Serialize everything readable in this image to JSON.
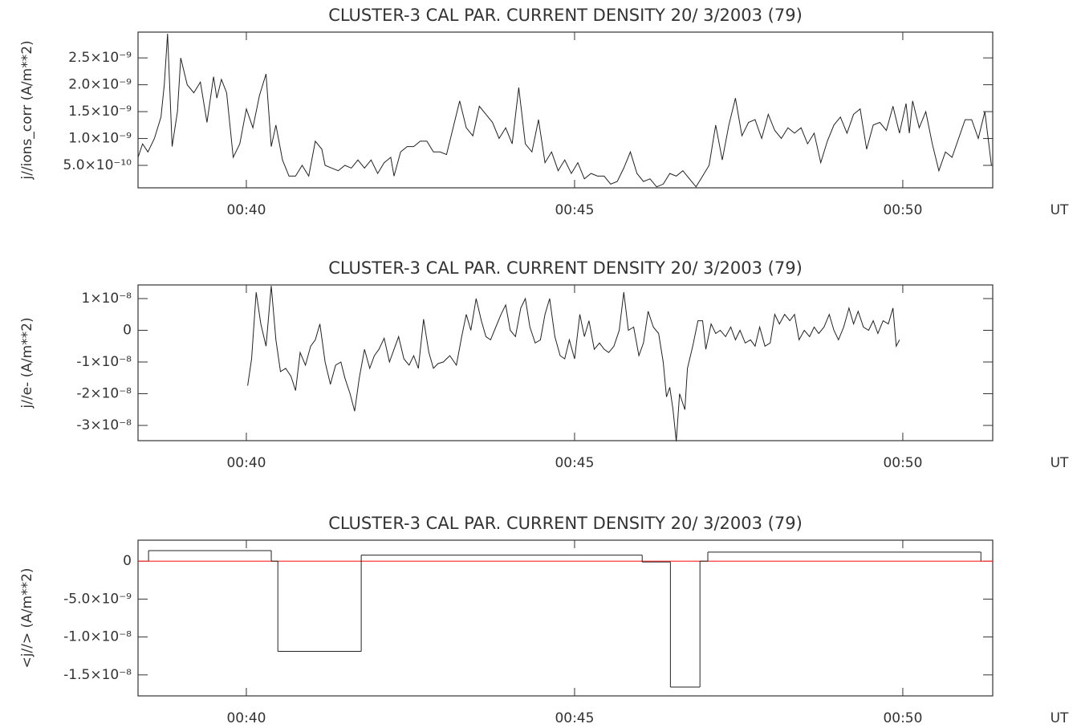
{
  "chart_data": [
    {
      "type": "line",
      "title": "CLUSTER-3 CAL PAR. CURRENT DENSITY 20/ 3/2003 (79)",
      "y_label": "j//ions_corr (A/m**2)",
      "x_label": "UT",
      "xlim": [
        38.35,
        51.37
      ],
      "xticks": [
        {
          "value": 40,
          "label": "00:40"
        },
        {
          "value": 45,
          "label": "00:45"
        },
        {
          "value": 50,
          "label": "00:50"
        }
      ],
      "ylim": [
        8.2e-11,
        2.98e-09
      ],
      "yticks": [
        {
          "value": 2.5e-09,
          "label": "2.5×10⁻⁹"
        },
        {
          "value": 2e-09,
          "label": "2.0×10⁻⁹"
        },
        {
          "value": 1.5e-09,
          "label": "1.5×10⁻⁹"
        },
        {
          "value": 1e-09,
          "label": "1.0×10⁻⁹"
        },
        {
          "value": 5e-10,
          "label": "5.0×10⁻¹⁰"
        }
      ],
      "series": [
        {
          "color": "#222222",
          "x": [
            38.35,
            38.42,
            38.5,
            38.6,
            38.7,
            38.75,
            38.8,
            38.87,
            38.95,
            39.0,
            39.1,
            39.2,
            39.3,
            39.4,
            39.5,
            39.55,
            39.62,
            39.7,
            39.8,
            39.9,
            40.0,
            40.1,
            40.2,
            40.3,
            40.38,
            40.45,
            40.55,
            40.65,
            40.75,
            40.85,
            40.95,
            41.05,
            41.15,
            41.2,
            41.3,
            41.4,
            41.5,
            41.6,
            41.7,
            41.8,
            41.9,
            42.0,
            42.1,
            42.2,
            42.25,
            42.35,
            42.45,
            42.55,
            42.65,
            42.75,
            42.85,
            42.95,
            43.05,
            43.15,
            43.25,
            43.35,
            43.45,
            43.55,
            43.65,
            43.75,
            43.85,
            43.95,
            44.05,
            44.15,
            44.25,
            44.35,
            44.45,
            44.55,
            44.65,
            44.75,
            44.85,
            44.95,
            45.05,
            45.15,
            45.25,
            45.35,
            45.45,
            45.55,
            45.65,
            45.75,
            45.85,
            45.95,
            46.05,
            46.15,
            46.25,
            46.35,
            46.45,
            46.55,
            46.65,
            46.75,
            46.85,
            46.95,
            47.05,
            47.15,
            47.25,
            47.35,
            47.45,
            47.55,
            47.65,
            47.75,
            47.85,
            47.95,
            48.05,
            48.15,
            48.25,
            48.35,
            48.45,
            48.55,
            48.65,
            48.75,
            48.85,
            48.95,
            49.05,
            49.15,
            49.25,
            49.35,
            49.45,
            49.55,
            49.65,
            49.75,
            49.85,
            49.95,
            50.05,
            50.1,
            50.15,
            50.25,
            50.35,
            50.45,
            50.55,
            50.65,
            50.75,
            50.85,
            50.95,
            51.05,
            51.15,
            51.25,
            51.35
          ],
          "values": [
            6.5e-10,
            9e-10,
            7.5e-10,
            1e-09,
            1.4e-09,
            2e-09,
            2.95e-09,
            8.5e-10,
            1.5e-09,
            2.5e-09,
            2e-09,
            1.85e-09,
            2.05e-09,
            1.3e-09,
            2.15e-09,
            1.75e-09,
            2.1e-09,
            1.85e-09,
            6.5e-10,
            9e-10,
            1.55e-09,
            1.2e-09,
            1.8e-09,
            2.2e-09,
            8.5e-10,
            1.25e-09,
            6e-10,
            3e-10,
            3e-10,
            5e-10,
            3e-10,
            9.5e-10,
            8e-10,
            5e-10,
            4.5e-10,
            4e-10,
            5e-10,
            4.5e-10,
            6e-10,
            4.5e-10,
            6e-10,
            3.5e-10,
            5.5e-10,
            6.5e-10,
            3e-10,
            7.5e-10,
            8.5e-10,
            8.5e-10,
            9.5e-10,
            9.5e-10,
            7.5e-10,
            7.5e-10,
            7e-10,
            1.2e-09,
            1.7e-09,
            1.2e-09,
            1.05e-09,
            1.6e-09,
            1.45e-09,
            1.3e-09,
            1e-09,
            1.2e-09,
            9e-10,
            1.95e-09,
            9e-10,
            7.5e-10,
            1.35e-09,
            5.5e-10,
            7.5e-10,
            4e-10,
            6e-10,
            3.5e-10,
            5.5e-10,
            2.5e-10,
            3.5e-10,
            3e-10,
            3e-10,
            1.5e-10,
            2e-10,
            4.5e-10,
            7.5e-10,
            3.5e-10,
            2e-10,
            2.5e-10,
            1e-10,
            1.5e-10,
            3.5e-10,
            3e-10,
            4e-10,
            2.5e-10,
            1e-10,
            3e-10,
            5e-10,
            1.25e-09,
            6e-10,
            1.25e-09,
            1.75e-09,
            1.05e-09,
            1.3e-09,
            1.35e-09,
            1e-09,
            1.45e-09,
            1.15e-09,
            1e-09,
            1.2e-09,
            1.1e-09,
            1.2e-09,
            9e-10,
            1.1e-09,
            5.5e-10,
            9.5e-10,
            1.25e-09,
            1.4e-09,
            1.1e-09,
            1.45e-09,
            1.55e-09,
            8e-10,
            1.25e-09,
            1.3e-09,
            1.15e-09,
            1.6e-09,
            1.1e-09,
            1.65e-09,
            1.1e-09,
            1.7e-09,
            1.2e-09,
            1.5e-09,
            9e-10,
            4e-10,
            7.5e-10,
            6.5e-10,
            1e-09,
            1.35e-09,
            1.35e-09,
            1e-09,
            1.5e-09,
            5e-10
          ]
        }
      ]
    },
    {
      "type": "line",
      "title": "CLUSTER-3 CAL PAR. CURRENT DENSITY 20/ 3/2003 (79)",
      "y_label": "j//e- (A/m**2)",
      "x_label": "UT",
      "xlim": [
        38.35,
        51.37
      ],
      "xticks": [
        {
          "value": 40,
          "label": "00:40"
        },
        {
          "value": 45,
          "label": "00:45"
        },
        {
          "value": 50,
          "label": "00:50"
        }
      ],
      "ylim": [
        -3.48e-08,
        1.43e-08
      ],
      "yticks": [
        {
          "value": 1e-08,
          "label": "1×10⁻⁸"
        },
        0,
        {
          "value": -1e-08,
          "label": "-1×10⁻⁸"
        },
        {
          "value": -2e-08,
          "label": "-2×10⁻⁸"
        },
        {
          "value": -3e-08,
          "label": "-3×10⁻⁸"
        }
      ],
      "series": [
        {
          "color": "#222222",
          "x": [
            40.02,
            40.08,
            40.15,
            40.22,
            40.3,
            40.38,
            40.45,
            40.52,
            40.6,
            40.68,
            40.75,
            40.82,
            40.9,
            40.98,
            41.05,
            41.12,
            41.2,
            41.28,
            41.36,
            41.44,
            41.5,
            41.58,
            41.65,
            41.72,
            41.8,
            41.88,
            41.95,
            42.02,
            42.1,
            42.18,
            42.25,
            42.32,
            42.4,
            42.48,
            42.55,
            42.62,
            42.7,
            42.78,
            42.85,
            42.92,
            43.0,
            43.1,
            43.2,
            43.28,
            43.35,
            43.42,
            43.5,
            43.58,
            43.65,
            43.72,
            43.8,
            43.88,
            43.95,
            44.02,
            44.1,
            44.18,
            44.25,
            44.32,
            44.4,
            44.48,
            44.55,
            44.62,
            44.7,
            44.78,
            44.85,
            44.92,
            45.0,
            45.08,
            45.15,
            45.22,
            45.3,
            45.38,
            45.45,
            45.52,
            45.6,
            45.68,
            45.75,
            45.82,
            45.9,
            45.98,
            46.05,
            46.12,
            46.2,
            46.28,
            46.35,
            46.4,
            46.45,
            46.5,
            46.55,
            46.6,
            46.68,
            46.72,
            46.8,
            46.88,
            46.95,
            47.0,
            47.08,
            47.15,
            47.22,
            47.3,
            47.38,
            47.45,
            47.52,
            47.6,
            47.68,
            47.75,
            47.82,
            47.9,
            47.98,
            48.05,
            48.12,
            48.2,
            48.28,
            48.35,
            48.42,
            48.5,
            48.58,
            48.65,
            48.72,
            48.8,
            48.88,
            48.95,
            49.02,
            49.1,
            49.18,
            49.25,
            49.32,
            49.4,
            49.48,
            49.55,
            49.62,
            49.7,
            49.78,
            49.85,
            49.9,
            49.95
          ],
          "values": [
            -1.75e-08,
            -9e-09,
            1.2e-08,
            2e-09,
            -5e-09,
            1.4e-08,
            -3e-09,
            -1.3e-08,
            -1.2e-08,
            -1.45e-08,
            -1.9e-08,
            -7e-09,
            -1.1e-08,
            -5e-09,
            -3e-09,
            2e-09,
            -1e-08,
            -1.7e-08,
            -1.1e-08,
            -1e-08,
            -1.5e-08,
            -2e-08,
            -2.55e-08,
            -1.5e-08,
            -6e-09,
            -1.2e-08,
            -8e-09,
            -6e-09,
            -2.5e-09,
            -1e-08,
            -6e-09,
            -2e-09,
            -9e-09,
            -1.1e-08,
            -8e-09,
            -1.2e-08,
            3.5e-09,
            -7e-09,
            -1.2e-08,
            -1.05e-08,
            -1e-08,
            -8e-09,
            -1.1e-08,
            -2e-09,
            5e-09,
            0.0,
            1e-08,
            3e-09,
            -2e-09,
            -3e-09,
            1e-09,
            5e-09,
            8e-09,
            0.0,
            -2e-09,
            7e-09,
            1e-08,
            1e-09,
            -4e-09,
            -3e-09,
            5e-09,
            1e-08,
            -2e-09,
            -8e-09,
            -9e-09,
            -3e-09,
            -9e-09,
            5e-09,
            -2e-09,
            3e-09,
            -6e-09,
            -4e-09,
            -6e-09,
            -7e-09,
            -5e-09,
            0.0,
            1.2e-08,
            0.0,
            1e-09,
            -8e-09,
            -4e-09,
            6e-09,
            1e-09,
            -1e-09,
            -1e-08,
            -2.1e-08,
            -1.8e-08,
            -2.5e-08,
            -3.5e-08,
            -2e-08,
            -2.5e-08,
            -1.2e-08,
            -5e-09,
            3e-09,
            3e-09,
            -6e-09,
            2e-09,
            -1e-09,
            0.0,
            -2e-09,
            1e-09,
            -3e-09,
            0.0,
            -4e-09,
            -3e-09,
            -5e-09,
            1e-09,
            -5e-09,
            -4e-09,
            5e-09,
            2e-09,
            5e-09,
            3e-09,
            5e-09,
            -3e-09,
            0.0,
            -2e-09,
            1e-09,
            -1e-09,
            1e-09,
            5e-09,
            0.0,
            -3e-09,
            1e-09,
            7e-09,
            2e-09,
            6e-09,
            1e-09,
            0.0,
            3e-09,
            -1e-09,
            3e-09,
            2e-09,
            7e-09,
            -5e-09,
            -3e-09
          ]
        }
      ]
    },
    {
      "type": "step",
      "title": "CLUSTER-3 CAL PAR. CURRENT DENSITY 20/ 3/2003 (79)",
      "y_label": "<j//> (A/m**2)",
      "x_label": "UT",
      "xlim": [
        38.35,
        51.37
      ],
      "xticks": [
        {
          "value": 40,
          "label": "00:40"
        },
        {
          "value": 45,
          "label": "00:45"
        },
        {
          "value": 50,
          "label": "00:50"
        }
      ],
      "ylim": [
        -1.777e-08,
        2.77e-09
      ],
      "yticks": [
        0,
        {
          "value": -5e-09,
          "label": "-5.0×10⁻⁹"
        },
        {
          "value": -1e-08,
          "label": "-1.0×10⁻⁸"
        },
        {
          "value": -1.5e-08,
          "label": "-1.5×10⁻⁸"
        }
      ],
      "hline": 0,
      "hline_color": "#ff2020",
      "series": [
        {
          "color": "#222222",
          "bins": [
            38.51,
            40.38,
            40.48,
            41.75,
            46.03,
            46.46,
            46.91,
            47.03,
            51.19
          ],
          "values": [
            1.4e-09,
            0,
            -1.19e-08,
            8e-10,
            -1e-10,
            -1.66e-08,
            0,
            1.2e-09
          ]
        }
      ]
    }
  ]
}
